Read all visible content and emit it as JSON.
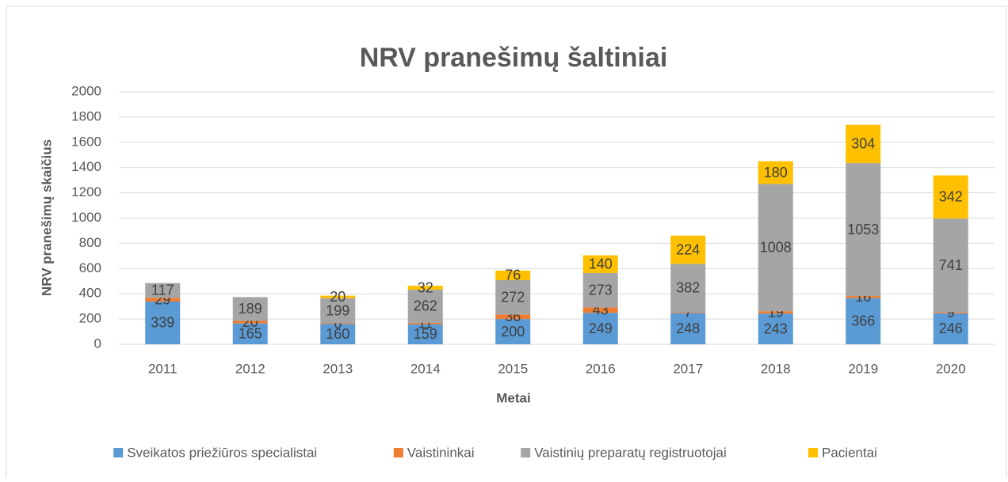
{
  "chart_data": {
    "type": "bar",
    "stacked": true,
    "title": "NRV pranešimų šaltiniai",
    "x_label": "Metai",
    "y_label": "NRV pranešimų skaičius",
    "categories": [
      "2011",
      "2012",
      "2013",
      "2014",
      "2015",
      "2016",
      "2017",
      "2018",
      "2019",
      "2020"
    ],
    "series": [
      {
        "name": "Sveikatos priežiūros specialistai",
        "color": "#5b9bd5",
        "values": [
          339,
          165,
          160,
          159,
          200,
          249,
          248,
          243,
          366,
          246
        ]
      },
      {
        "name": "Vaistininkai",
        "color": "#ed7d31",
        "values": [
          29,
          20,
          6,
          11,
          36,
          43,
          7,
          19,
          16,
          9
        ]
      },
      {
        "name": "Vaistinių preparatų registruotojai",
        "color": "#a5a5a5",
        "values": [
          117,
          189,
          199,
          262,
          272,
          273,
          382,
          1008,
          1053,
          741
        ]
      },
      {
        "name": "Pacientai",
        "color": "#ffc000",
        "values": [
          null,
          null,
          20,
          32,
          76,
          140,
          224,
          180,
          304,
          342
        ]
      }
    ],
    "ylim": [
      0,
      2000
    ],
    "yticks": [
      0,
      200,
      400,
      600,
      800,
      1000,
      1200,
      1400,
      1600,
      1800,
      2000
    ],
    "grid": true,
    "legend": "bottom"
  }
}
